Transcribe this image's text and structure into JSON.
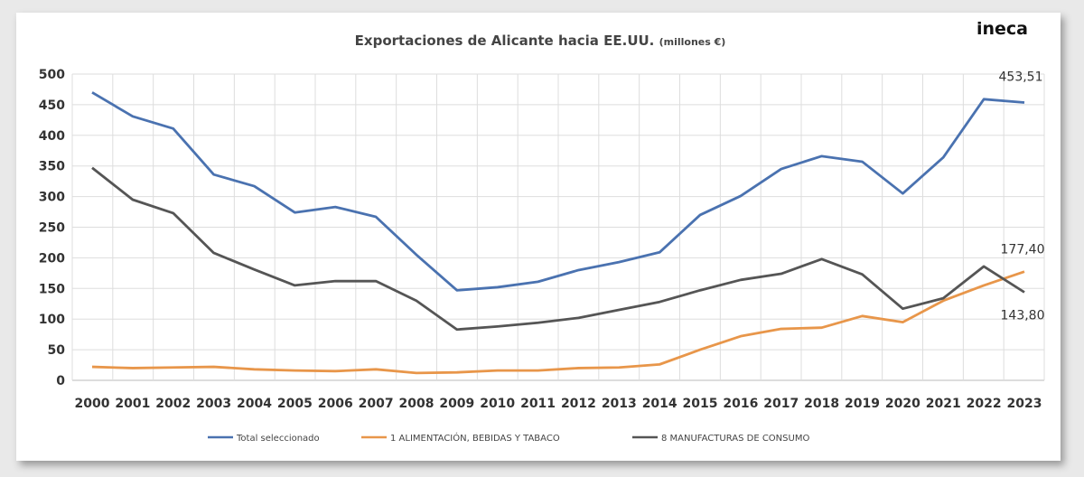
{
  "logo": "ineca",
  "chart_data": {
    "type": "line",
    "title": "Exportaciones de Alicante hacia EE.UU.",
    "subtitle": "(millones €)",
    "xlabel": "",
    "ylabel": "",
    "ylim": [
      0,
      500
    ],
    "yticks": [
      0,
      50,
      100,
      150,
      200,
      250,
      300,
      350,
      400,
      450,
      500
    ],
    "grid": true,
    "legend_position": "bottom",
    "categories": [
      "2000",
      "2001",
      "2002",
      "2003",
      "2004",
      "2005",
      "2006",
      "2007",
      "2008",
      "2009",
      "2010",
      "2011",
      "2012",
      "2013",
      "2014",
      "2015",
      "2016",
      "2017",
      "2018",
      "2019",
      "2020",
      "2021",
      "2022",
      "2023"
    ],
    "series": [
      {
        "name": "Total seleccionado",
        "color": "#4a72b0",
        "values": [
          470,
          431,
          411,
          336,
          317,
          274,
          283,
          267,
          205,
          147,
          152,
          161,
          180,
          193,
          209,
          270,
          301,
          345,
          366,
          357,
          305,
          364,
          459,
          453.51
        ]
      },
      {
        "name": "1 ALIMENTACIÓN, BEBIDAS Y TABACO",
        "color": "#e8964a",
        "values": [
          22,
          20,
          21,
          22,
          18,
          16,
          15,
          18,
          12,
          13,
          16,
          16,
          20,
          21,
          26,
          50,
          72,
          84,
          86,
          105,
          95,
          130,
          155,
          177.4
        ]
      },
      {
        "name": "8 MANUFACTURAS DE CONSUMO",
        "color": "#555555",
        "values": [
          347,
          295,
          273,
          208,
          181,
          155,
          162,
          162,
          130,
          83,
          88,
          94,
          102,
          115,
          128,
          147,
          164,
          174,
          198,
          173,
          117,
          134,
          186,
          143.8
        ]
      }
    ],
    "annotations": [
      {
        "series": "Total seleccionado",
        "x": "2023",
        "label": "453,51"
      },
      {
        "series": "1 ALIMENTACIÓN, BEBIDAS Y TABACO",
        "x": "2023",
        "label": "177,40"
      },
      {
        "series": "8 MANUFACTURAS DE CONSUMO",
        "x": "2023",
        "label": "143,80"
      }
    ]
  }
}
